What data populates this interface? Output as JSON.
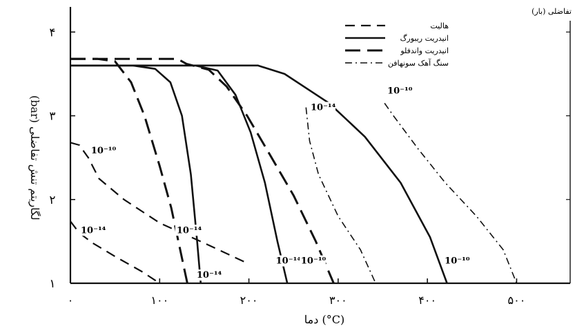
{
  "chart_data": {
    "type": "line",
    "xlabel": "دما (°C)",
    "ylabel": "لگاریتم تنش تفاضلی (bar)",
    "top_right_label": "تفاضلی (بار)",
    "x_ticks": [
      {
        "value": 0,
        "label": "۰"
      },
      {
        "value": 100,
        "label": "۱۰۰"
      },
      {
        "value": 200,
        "label": "۲۰۰"
      },
      {
        "value": 300,
        "label": "۳۰۰"
      },
      {
        "value": 400,
        "label": "۴۰۰"
      },
      {
        "value": 500,
        "label": "۵۰۰"
      }
    ],
    "y_ticks": [
      {
        "value": 1,
        "label": "۱"
      },
      {
        "value": 2,
        "label": "۲"
      },
      {
        "value": 3,
        "label": "۳"
      },
      {
        "value": 4,
        "label": "۴"
      }
    ],
    "xlim": [
      0,
      560
    ],
    "ylim": [
      1,
      4.3
    ],
    "legend_position": "top-right",
    "series": [
      {
        "name": "هالیت",
        "style": "dash",
        "curves": [
          {
            "label": "10⁻¹⁰",
            "points": [
              [
                0,
                2.68
              ],
              [
                10,
                2.65
              ],
              [
                20,
                2.5
              ],
              [
                32,
                2.25
              ],
              [
                60,
                2.0
              ],
              [
                100,
                1.72
              ],
              [
                150,
                1.48
              ],
              [
                200,
                1.23
              ]
            ]
          },
          {
            "label": "10⁻¹⁴",
            "points": [
              [
                0,
                1.74
              ],
              [
                10,
                1.6
              ],
              [
                25,
                1.48
              ],
              [
                50,
                1.32
              ],
              [
                80,
                1.14
              ],
              [
                100,
                1.0
              ]
            ]
          }
        ]
      },
      {
        "name": "انیدریت ریبورگ",
        "style": "solid",
        "curves": [
          {
            "label": "10⁻¹⁴",
            "points": [
              [
                0,
                3.6
              ],
              [
                70,
                3.6
              ],
              [
                95,
                3.56
              ],
              [
                112,
                3.4
              ],
              [
                125,
                3.0
              ],
              [
                135,
                2.3
              ],
              [
                142,
                1.5
              ],
              [
                146,
                1.0
              ]
            ]
          },
          {
            "label": "10⁻¹⁴",
            "points": [
              [
                0,
                3.6
              ],
              [
                140,
                3.6
              ],
              [
                165,
                3.54
              ],
              [
                185,
                3.25
              ],
              [
                202,
                2.8
              ],
              [
                218,
                2.2
              ],
              [
                232,
                1.5
              ],
              [
                243,
                1.0
              ]
            ]
          },
          {
            "label": "10⁻¹⁰",
            "points": [
              [
                0,
                3.6
              ],
              [
                210,
                3.6
              ],
              [
                240,
                3.5
              ],
              [
                290,
                3.15
              ],
              [
                330,
                2.75
              ],
              [
                370,
                2.2
              ],
              [
                403,
                1.55
              ],
              [
                422,
                1.0
              ]
            ]
          }
        ]
      },
      {
        "name": "انیدریت واندفلو",
        "style": "longdash",
        "curves": [
          {
            "label": "10⁻¹⁴",
            "points": [
              [
                0,
                3.68
              ],
              [
                30,
                3.68
              ],
              [
                50,
                3.65
              ],
              [
                68,
                3.4
              ],
              [
                83,
                3.0
              ],
              [
                100,
                2.4
              ],
              [
                113,
                1.9
              ],
              [
                125,
                1.3
              ],
              [
                131,
                1.0
              ]
            ]
          },
          {
            "label": "10⁻¹⁰",
            "points": [
              [
                0,
                3.68
              ],
              [
                30,
                3.68
              ],
              [
                120,
                3.68
              ],
              [
                130,
                3.62
              ],
              [
                155,
                3.55
              ],
              [
                175,
                3.35
              ],
              [
                198,
                3.0
              ],
              [
                220,
                2.6
              ],
              [
                250,
                2.05
              ],
              [
                275,
                1.5
              ],
              [
                295,
                1.0
              ]
            ]
          }
        ]
      },
      {
        "name": "سنگ آهک سونهافن",
        "style": "dashdot",
        "curves": [
          {
            "label": "10⁻¹⁴",
            "points": [
              [
                264,
                3.1
              ],
              [
                268,
                2.7
              ],
              [
                278,
                2.3
              ],
              [
                300,
                1.8
              ],
              [
                325,
                1.4
              ],
              [
                342,
                1.0
              ]
            ]
          },
          {
            "label": "10⁻¹⁰",
            "points": [
              [
                352,
                3.15
              ],
              [
                362,
                3.0
              ],
              [
                390,
                2.6
              ],
              [
                420,
                2.2
              ],
              [
                455,
                1.8
              ],
              [
                485,
                1.4
              ],
              [
                500,
                1.0
              ]
            ]
          }
        ]
      }
    ]
  }
}
